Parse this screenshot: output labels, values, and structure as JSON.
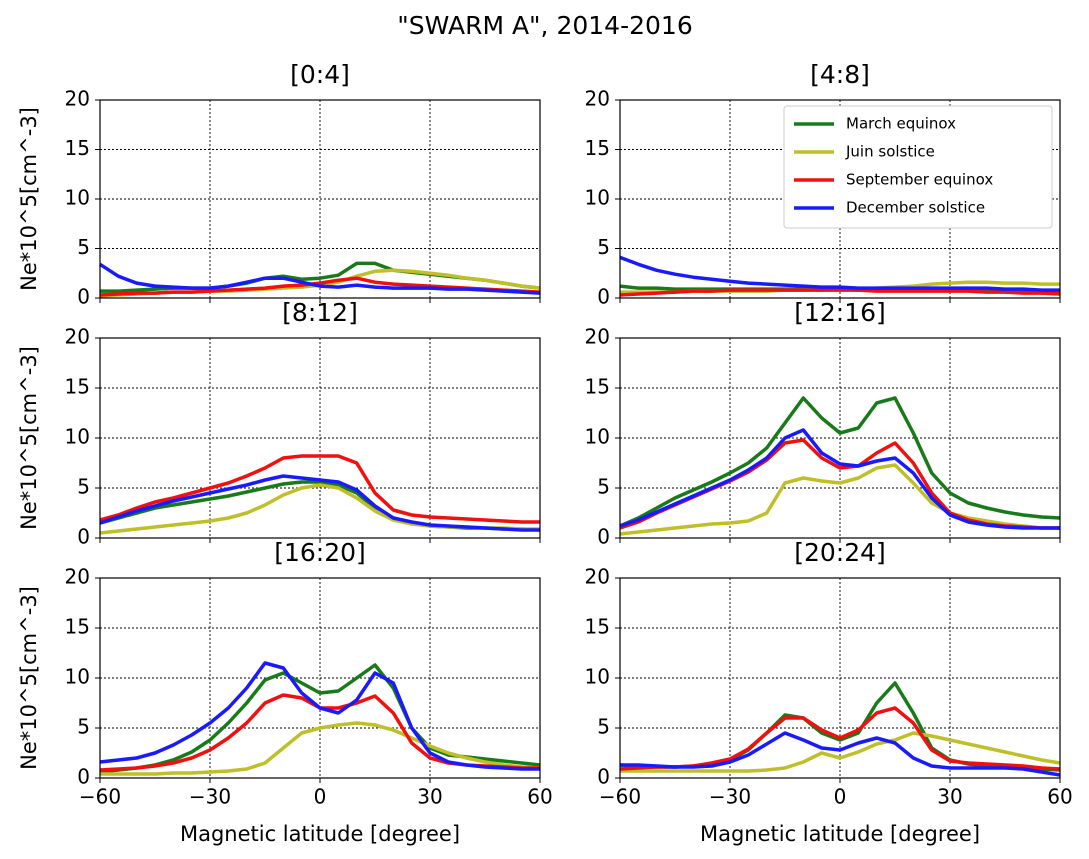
{
  "title": "\"SWARM A\", 2014-2016",
  "chart_data": [
    {
      "type": "line",
      "title": "[0:4]",
      "ylabel": "Ne*10^5[cm^-3]",
      "x": [
        -60,
        -55,
        -50,
        -45,
        -40,
        -35,
        -30,
        -25,
        -20,
        -15,
        -10,
        -5,
        0,
        5,
        10,
        15,
        20,
        25,
        30,
        35,
        40,
        45,
        50,
        55,
        60
      ],
      "xlim": [
        -60,
        60
      ],
      "ylim": [
        0,
        20
      ],
      "xticks": [
        -60,
        -30,
        0,
        30,
        60
      ],
      "yticks": [
        0,
        5,
        10,
        15,
        20
      ],
      "grid": true,
      "series": [
        {
          "color": "#187a18",
          "values": [
            0.7,
            0.7,
            0.8,
            0.9,
            1.0,
            1.0,
            1.0,
            1.2,
            1.5,
            2.0,
            2.2,
            1.9,
            2.0,
            2.3,
            3.5,
            3.5,
            2.8,
            2.6,
            2.4,
            2.2,
            2.0,
            1.8,
            1.5,
            1.2,
            1.0
          ]
        },
        {
          "color": "#bfbf2a",
          "values": [
            0.2,
            0.3,
            0.4,
            0.5,
            0.6,
            0.6,
            0.7,
            0.7,
            0.8,
            0.9,
            1.0,
            1.1,
            1.3,
            1.6,
            2.2,
            2.7,
            2.8,
            2.7,
            2.5,
            2.3,
            2.0,
            1.8,
            1.5,
            1.2,
            1.0
          ]
        },
        {
          "color": "#f01010",
          "values": [
            0.3,
            0.4,
            0.5,
            0.5,
            0.6,
            0.6,
            0.7,
            0.8,
            0.9,
            1.0,
            1.2,
            1.3,
            1.5,
            1.8,
            2.0,
            1.6,
            1.4,
            1.3,
            1.2,
            1.1,
            1.0,
            0.9,
            0.8,
            0.7,
            0.6
          ]
        },
        {
          "color": "#1a1aff",
          "values": [
            3.4,
            2.2,
            1.5,
            1.2,
            1.1,
            1.0,
            1.0,
            1.2,
            1.6,
            2.0,
            2.0,
            1.6,
            1.2,
            1.1,
            1.3,
            1.1,
            1.0,
            1.0,
            1.0,
            0.9,
            0.9,
            0.8,
            0.7,
            0.6,
            0.5
          ]
        }
      ]
    },
    {
      "type": "line",
      "title": "[4:8]",
      "legend": "upper right",
      "x": [
        -60,
        -55,
        -50,
        -45,
        -40,
        -35,
        -30,
        -25,
        -20,
        -15,
        -10,
        -5,
        0,
        5,
        10,
        15,
        20,
        25,
        30,
        35,
        40,
        45,
        50,
        55,
        60
      ],
      "xlim": [
        -60,
        60
      ],
      "ylim": [
        0,
        20
      ],
      "xticks": [
        -60,
        -30,
        0,
        30,
        60
      ],
      "yticks": [
        0,
        5,
        10,
        15,
        20
      ],
      "grid": true,
      "series": [
        {
          "name": "March equinox",
          "color": "#187a18",
          "values": [
            1.2,
            1.0,
            1.0,
            0.9,
            0.9,
            0.9,
            0.9,
            0.9,
            0.9,
            0.9,
            0.9,
            0.9,
            0.9,
            0.8,
            0.8,
            0.8,
            0.8,
            0.8,
            0.8,
            0.8,
            0.8,
            0.8,
            0.7,
            0.7,
            0.7
          ]
        },
        {
          "name": "Juin solstice",
          "color": "#bfbf2a",
          "values": [
            0.6,
            0.6,
            0.6,
            0.6,
            0.7,
            0.7,
            0.7,
            0.7,
            0.7,
            0.8,
            0.8,
            0.8,
            0.9,
            0.9,
            1.0,
            1.1,
            1.2,
            1.4,
            1.5,
            1.6,
            1.6,
            1.5,
            1.5,
            1.4,
            1.4
          ]
        },
        {
          "name": "September equinox",
          "color": "#f01010",
          "values": [
            0.3,
            0.4,
            0.5,
            0.6,
            0.7,
            0.7,
            0.8,
            0.8,
            0.8,
            0.8,
            0.8,
            0.8,
            0.8,
            0.8,
            0.7,
            0.7,
            0.7,
            0.7,
            0.7,
            0.7,
            0.6,
            0.6,
            0.5,
            0.5,
            0.4
          ]
        },
        {
          "name": "December solstice",
          "color": "#1a1aff",
          "values": [
            4.1,
            3.4,
            2.8,
            2.4,
            2.1,
            1.9,
            1.7,
            1.5,
            1.4,
            1.3,
            1.2,
            1.1,
            1.1,
            1.0,
            1.0,
            1.0,
            1.0,
            1.0,
            1.0,
            1.0,
            1.0,
            0.9,
            0.9,
            0.8,
            0.8
          ]
        }
      ]
    },
    {
      "type": "line",
      "title": "[8:12]",
      "ylabel": "Ne*10^5[cm^-3]",
      "x": [
        -60,
        -55,
        -50,
        -45,
        -40,
        -35,
        -30,
        -25,
        -20,
        -15,
        -10,
        -5,
        0,
        5,
        10,
        15,
        20,
        25,
        30,
        35,
        40,
        45,
        50,
        55,
        60
      ],
      "xlim": [
        -60,
        60
      ],
      "ylim": [
        0,
        20
      ],
      "xticks": [
        -60,
        -30,
        0,
        30,
        60
      ],
      "yticks": [
        0,
        5,
        10,
        15,
        20
      ],
      "grid": true,
      "series": [
        {
          "color": "#187a18",
          "values": [
            1.5,
            2.0,
            2.5,
            3.0,
            3.3,
            3.6,
            3.9,
            4.2,
            4.6,
            5.0,
            5.4,
            5.6,
            5.6,
            5.3,
            4.5,
            3.0,
            2.0,
            1.5,
            1.2,
            1.1,
            1.0,
            1.0,
            0.9,
            0.9,
            0.8
          ]
        },
        {
          "color": "#bfbf2a",
          "values": [
            0.5,
            0.7,
            0.9,
            1.1,
            1.3,
            1.5,
            1.7,
            2.0,
            2.5,
            3.3,
            4.3,
            5.0,
            5.3,
            5.0,
            4.0,
            2.7,
            1.8,
            1.4,
            1.2,
            1.1,
            1.1,
            1.0,
            1.0,
            0.9,
            0.9
          ]
        },
        {
          "color": "#f01010",
          "values": [
            1.8,
            2.3,
            3.0,
            3.6,
            4.0,
            4.5,
            5.0,
            5.5,
            6.2,
            7.0,
            8.0,
            8.2,
            8.2,
            8.2,
            7.5,
            4.5,
            2.8,
            2.3,
            2.1,
            2.0,
            1.9,
            1.8,
            1.7,
            1.6,
            1.6
          ]
        },
        {
          "color": "#1a1aff",
          "values": [
            1.5,
            2.1,
            2.7,
            3.2,
            3.7,
            4.1,
            4.5,
            4.9,
            5.3,
            5.8,
            6.2,
            6.0,
            5.8,
            5.6,
            4.8,
            3.2,
            2.0,
            1.6,
            1.3,
            1.2,
            1.1,
            1.0,
            0.9,
            0.8,
            0.8
          ]
        }
      ]
    },
    {
      "type": "line",
      "title": "[12:16]",
      "x": [
        -60,
        -55,
        -50,
        -45,
        -40,
        -35,
        -30,
        -25,
        -20,
        -15,
        -10,
        -5,
        0,
        5,
        10,
        15,
        20,
        25,
        30,
        35,
        40,
        45,
        50,
        55,
        60
      ],
      "xlim": [
        -60,
        60
      ],
      "ylim": [
        0,
        20
      ],
      "xticks": [
        -60,
        -30,
        0,
        30,
        60
      ],
      "yticks": [
        0,
        5,
        10,
        15,
        20
      ],
      "grid": true,
      "series": [
        {
          "color": "#187a18",
          "values": [
            1.2,
            2.0,
            3.0,
            4.0,
            4.8,
            5.6,
            6.5,
            7.5,
            9.0,
            11.5,
            14.0,
            12.0,
            10.5,
            11.0,
            13.5,
            14.0,
            10.5,
            6.5,
            4.5,
            3.5,
            3.0,
            2.6,
            2.3,
            2.1,
            2.0
          ]
        },
        {
          "color": "#bfbf2a",
          "values": [
            0.4,
            0.6,
            0.8,
            1.0,
            1.2,
            1.4,
            1.5,
            1.7,
            2.5,
            5.5,
            6.0,
            5.7,
            5.5,
            6.0,
            7.0,
            7.3,
            5.5,
            3.5,
            2.5,
            2.0,
            1.7,
            1.4,
            1.2,
            1.0,
            1.0
          ]
        },
        {
          "color": "#f01010",
          "values": [
            1.0,
            1.6,
            2.5,
            3.3,
            4.1,
            4.9,
            5.7,
            6.6,
            7.8,
            9.5,
            9.8,
            8.0,
            7.0,
            7.2,
            8.5,
            9.5,
            7.5,
            4.5,
            2.5,
            1.8,
            1.4,
            1.2,
            1.1,
            1.0,
            1.0
          ]
        },
        {
          "color": "#1a1aff",
          "values": [
            1.2,
            1.8,
            2.6,
            3.4,
            4.2,
            5.0,
            5.8,
            6.8,
            8.0,
            10.0,
            10.8,
            8.5,
            7.4,
            7.2,
            7.7,
            8.0,
            6.5,
            4.0,
            2.3,
            1.6,
            1.3,
            1.1,
            1.0,
            1.0,
            1.0
          ]
        }
      ]
    },
    {
      "type": "line",
      "title": "[16:20]",
      "ylabel": "Ne*10^5[cm^-3]",
      "xlabel": "Magnetic latitude [degree]",
      "x": [
        -60,
        -55,
        -50,
        -45,
        -40,
        -35,
        -30,
        -25,
        -20,
        -15,
        -10,
        -5,
        0,
        5,
        10,
        15,
        20,
        25,
        30,
        35,
        40,
        45,
        50,
        55,
        60
      ],
      "xlim": [
        -60,
        60
      ],
      "ylim": [
        0,
        20
      ],
      "xticks": [
        {
          "value": -60,
          "label": "−60"
        },
        {
          "value": -30,
          "label": "−30"
        },
        0,
        30,
        60
      ],
      "yticks": [
        0,
        5,
        10,
        15,
        20
      ],
      "grid": true,
      "series": [
        {
          "color": "#187a18",
          "values": [
            0.6,
            0.8,
            1.0,
            1.3,
            1.8,
            2.6,
            3.8,
            5.5,
            7.5,
            9.8,
            10.5,
            9.5,
            8.5,
            8.7,
            10.0,
            11.3,
            9.0,
            5.0,
            3.0,
            2.3,
            2.1,
            1.9,
            1.7,
            1.5,
            1.3
          ]
        },
        {
          "color": "#bfbf2a",
          "values": [
            0.4,
            0.4,
            0.4,
            0.4,
            0.5,
            0.5,
            0.6,
            0.7,
            0.9,
            1.5,
            3.0,
            4.5,
            5.0,
            5.3,
            5.5,
            5.3,
            4.8,
            4.0,
            3.2,
            2.5,
            2.0,
            1.6,
            1.3,
            1.1,
            1.0
          ]
        },
        {
          "color": "#f01010",
          "values": [
            0.8,
            0.9,
            1.0,
            1.2,
            1.5,
            2.0,
            2.8,
            4.0,
            5.5,
            7.5,
            8.3,
            8.0,
            7.0,
            7.0,
            7.5,
            8.2,
            6.5,
            3.5,
            2.0,
            1.5,
            1.3,
            1.2,
            1.1,
            1.0,
            1.0
          ]
        },
        {
          "color": "#1a1aff",
          "values": [
            1.6,
            1.8,
            2.0,
            2.5,
            3.3,
            4.3,
            5.5,
            7.0,
            9.0,
            11.5,
            11.0,
            8.5,
            7.0,
            6.5,
            7.8,
            10.5,
            9.5,
            5.0,
            2.5,
            1.6,
            1.3,
            1.1,
            1.0,
            0.9,
            0.9
          ]
        }
      ]
    },
    {
      "type": "line",
      "title": "[20:24]",
      "xlabel": "Magnetic latitude [degree]",
      "x": [
        -60,
        -55,
        -50,
        -45,
        -40,
        -35,
        -30,
        -25,
        -20,
        -15,
        -10,
        -5,
        0,
        5,
        10,
        15,
        20,
        25,
        30,
        35,
        40,
        45,
        50,
        55,
        60
      ],
      "xlim": [
        -60,
        60
      ],
      "ylim": [
        0,
        20
      ],
      "xticks": [
        {
          "value": -60,
          "label": "−60"
        },
        {
          "value": -30,
          "label": "−30"
        },
        0,
        30,
        60
      ],
      "yticks": [
        0,
        5,
        10,
        15,
        20
      ],
      "grid": true,
      "series": [
        {
          "color": "#187a18",
          "values": [
            1.3,
            1.2,
            1.1,
            1.1,
            1.2,
            1.4,
            1.8,
            2.8,
            4.5,
            6.3,
            6.0,
            4.5,
            3.8,
            4.5,
            7.5,
            9.5,
            6.5,
            3.0,
            1.8,
            1.4,
            1.2,
            1.1,
            1.0,
            0.9,
            0.8
          ]
        },
        {
          "color": "#bfbf2a",
          "values": [
            0.7,
            0.7,
            0.7,
            0.7,
            0.7,
            0.7,
            0.7,
            0.7,
            0.8,
            1.0,
            1.6,
            2.5,
            2.0,
            2.6,
            3.4,
            3.8,
            4.5,
            4.2,
            3.8,
            3.4,
            3.0,
            2.6,
            2.2,
            1.8,
            1.5
          ]
        },
        {
          "color": "#f01010",
          "values": [
            0.9,
            1.0,
            1.1,
            1.1,
            1.2,
            1.5,
            1.9,
            2.9,
            4.5,
            6.0,
            6.0,
            4.8,
            4.0,
            4.8,
            6.5,
            7.0,
            5.5,
            2.8,
            1.7,
            1.5,
            1.4,
            1.3,
            1.2,
            1.0,
            0.9
          ]
        },
        {
          "color": "#1a1aff",
          "values": [
            1.3,
            1.3,
            1.2,
            1.1,
            1.1,
            1.2,
            1.6,
            2.3,
            3.4,
            4.5,
            3.8,
            3.0,
            2.8,
            3.5,
            4.0,
            3.5,
            2.0,
            1.2,
            1.0,
            1.0,
            1.0,
            1.0,
            0.9,
            0.6,
            0.3
          ]
        }
      ]
    }
  ]
}
